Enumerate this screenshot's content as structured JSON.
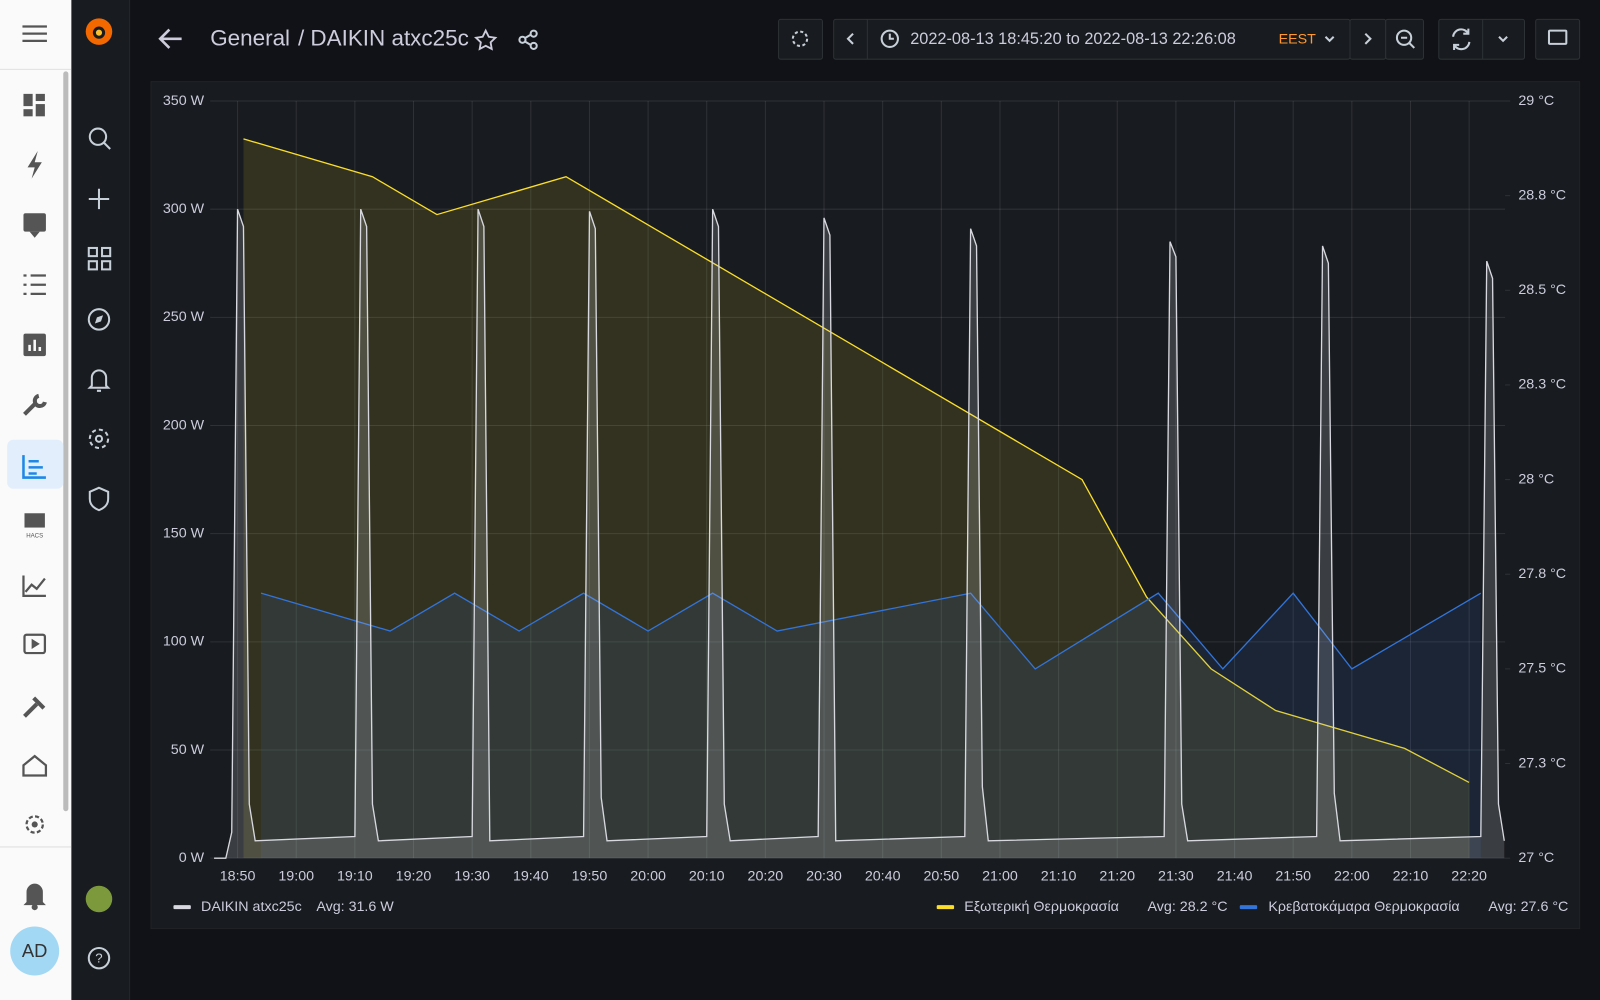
{
  "header": {
    "breadcrumb_folder": "General",
    "breadcrumb_title": "/ DAIKIN atxc25c",
    "time_range": "2022-08-13 18:45:20 to 2022-08-13 22:26:08",
    "timezone": "EEST"
  },
  "user": {
    "initials": "AD"
  },
  "chart_data": {
    "type": "line",
    "xlim": [
      "18:45:20",
      "22:26:08"
    ],
    "xticks": [
      "18:50",
      "19:00",
      "19:10",
      "19:20",
      "19:30",
      "19:40",
      "19:50",
      "20:00",
      "20:10",
      "20:20",
      "20:30",
      "20:40",
      "20:50",
      "21:00",
      "21:10",
      "21:20",
      "21:30",
      "21:40",
      "21:50",
      "22:00",
      "22:10",
      "22:20"
    ],
    "ylim": [
      0,
      350
    ],
    "yticks": [
      {
        "value": 0,
        "label": "0 W"
      },
      {
        "value": 50,
        "label": "50 W"
      },
      {
        "value": 100,
        "label": "100 W"
      },
      {
        "value": 150,
        "label": "150 W"
      },
      {
        "value": 200,
        "label": "200 W"
      },
      {
        "value": 250,
        "label": "250 W"
      },
      {
        "value": 300,
        "label": "300 W"
      },
      {
        "value": 350,
        "label": "350 W"
      }
    ],
    "y2lim": [
      27,
      29
    ],
    "y2ticks": [
      {
        "value": 27,
        "label": "27 °C"
      },
      {
        "value": 27.25,
        "label": "27.3 °C"
      },
      {
        "value": 27.5,
        "label": "27.5 °C"
      },
      {
        "value": 27.75,
        "label": "27.8 °C"
      },
      {
        "value": 28,
        "label": "28 °C"
      },
      {
        "value": 28.25,
        "label": "28.3 °C"
      },
      {
        "value": 28.5,
        "label": "28.5 °C"
      },
      {
        "value": 28.75,
        "label": "28.8 °C"
      },
      {
        "value": 29,
        "label": "29 °C"
      }
    ],
    "grid": true,
    "series": [
      {
        "name": "DAIKIN atxc25c",
        "avg_label": "Avg: 31.6 W",
        "color": "#d8d9e0",
        "axis": "y",
        "x": [
          "18:46",
          "18:48",
          "18:49",
          "18:50",
          "18:51",
          "18:52",
          "18:53",
          "19:10",
          "19:11",
          "19:12",
          "19:13",
          "19:14",
          "19:30",
          "19:31",
          "19:32",
          "19:33",
          "19:49",
          "19:50",
          "19:51",
          "19:52",
          "19:53",
          "20:10",
          "20:11",
          "20:12",
          "20:13",
          "20:14",
          "20:29",
          "20:30",
          "20:31",
          "20:32",
          "20:54",
          "20:55",
          "20:56",
          "20:57",
          "20:58",
          "21:28",
          "21:29",
          "21:30",
          "21:31",
          "21:32",
          "21:54",
          "21:55",
          "21:56",
          "21:57",
          "21:58",
          "22:22",
          "22:23",
          "22:24",
          "22:25",
          "22:26"
        ],
        "values": [
          0,
          0,
          12,
          300,
          292,
          25,
          8,
          10,
          300,
          292,
          25,
          8,
          10,
          300,
          292,
          8,
          10,
          299,
          291,
          28,
          8,
          10,
          300,
          292,
          25,
          8,
          10,
          296,
          288,
          8,
          10,
          291,
          283,
          33,
          8,
          10,
          285,
          278,
          25,
          8,
          10,
          283,
          275,
          30,
          8,
          10,
          276,
          268,
          25,
          8
        ]
      },
      {
        "name": "Εξωτερική Θερμοκρασία",
        "avg_label": "Avg: 28.2 °C",
        "color": "#fade2a",
        "axis": "y2",
        "x": [
          "18:51",
          "19:13",
          "19:24",
          "19:46",
          "21:14",
          "21:25",
          "21:36",
          "21:47",
          "22:09",
          "22:20"
        ],
        "values": [
          28.9,
          28.8,
          28.7,
          28.8,
          28.0,
          27.69,
          27.5,
          27.39,
          27.29,
          27.2
        ]
      },
      {
        "name": "Κρεβατοκάμαρα Θερμοκρασία",
        "avg_label": "Avg: 27.6 °C",
        "color": "#3274d9",
        "axis": "y2",
        "x": [
          "18:54",
          "19:16",
          "19:27",
          "19:38",
          "19:49",
          "20:00",
          "20:11",
          "20:22",
          "20:55",
          "21:06",
          "21:27",
          "21:38",
          "21:50",
          "22:00",
          "22:22"
        ],
        "values": [
          27.7,
          27.6,
          27.7,
          27.6,
          27.7,
          27.6,
          27.7,
          27.6,
          27.7,
          27.5,
          27.7,
          27.5,
          27.7,
          27.5,
          27.7
        ]
      }
    ]
  }
}
